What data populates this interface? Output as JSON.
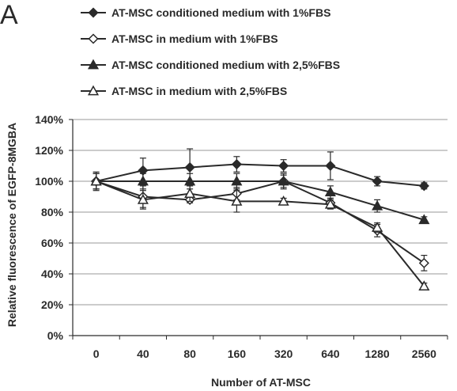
{
  "panel_label": "A",
  "chart_data": {
    "type": "line",
    "title": "",
    "xlabel": "Number of AT-MSC",
    "ylabel": "Relative fluorescence of EGFP-8MGBA",
    "categories": [
      "0",
      "40",
      "80",
      "160",
      "320",
      "640",
      "1280",
      "2560"
    ],
    "y_ticks": [
      "0%",
      "20%",
      "40%",
      "60%",
      "80%",
      "100%",
      "120%",
      "140%"
    ],
    "ylim": [
      0,
      140
    ],
    "y_unit": "%",
    "grid": "horizontal",
    "legend_position": "top",
    "series": [
      {
        "name": "AT-MSC conditioned medium with 1%FBS",
        "marker": "filled-diamond",
        "color": "#2a2a2a",
        "values": [
          100,
          107,
          109,
          111,
          110,
          110,
          100,
          97
        ],
        "errors": [
          6,
          8,
          12,
          5,
          4,
          9,
          3,
          2
        ]
      },
      {
        "name": "AT-MSC in  medium with 1%FBS",
        "marker": "open-diamond",
        "color": "#2a2a2a",
        "values": [
          100,
          90,
          88,
          92,
          100,
          86,
          68,
          47
        ],
        "errors": [
          5,
          7,
          2,
          4,
          4,
          3,
          4,
          5
        ]
      },
      {
        "name": "AT-MSC conditioned medium with 2,5%FBS",
        "marker": "filled-triangle",
        "color": "#2a2a2a",
        "values": [
          100,
          100,
          100,
          100,
          100,
          93,
          84,
          75
        ],
        "errors": [
          5,
          5,
          5,
          5,
          5,
          4,
          4,
          2
        ]
      },
      {
        "name": "AT-MSC in  medium with 2,5%FBS",
        "marker": "open-triangle",
        "color": "#2a2a2a",
        "values": [
          100,
          88,
          92,
          87,
          87,
          85,
          70,
          32
        ],
        "errors": [
          5,
          6,
          5,
          7,
          2,
          3,
          3,
          2
        ]
      }
    ]
  }
}
